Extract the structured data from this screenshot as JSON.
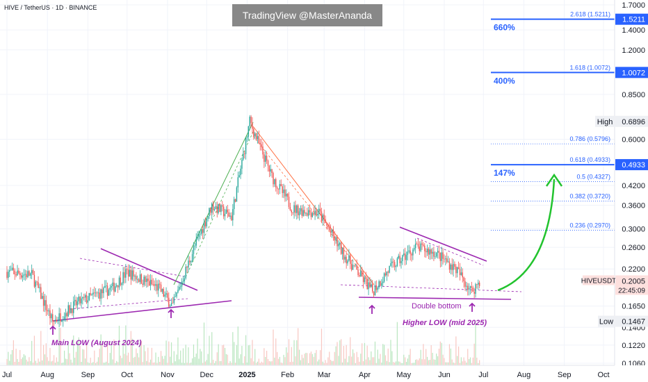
{
  "header": {
    "symbol": "HIVE / TetherUS · 1D · BINANCE",
    "watermark": "TradingView @MasterAnanda"
  },
  "price_axis": {
    "ticks": [
      "1.7000",
      "1.4000",
      "1.2000",
      "0.8500",
      "0.6000",
      "0.4200",
      "0.3600",
      "0.3000",
      "0.2600",
      "0.2200",
      "0.1650",
      "0.1400",
      "0.1220",
      "0.1060"
    ],
    "tick_values": [
      1.7,
      1.4,
      1.2,
      0.85,
      0.6,
      0.42,
      0.36,
      0.3,
      0.26,
      0.22,
      0.165,
      0.14,
      0.122,
      0.106
    ],
    "current": {
      "label": "HIVEUSDT",
      "price": "0.2005",
      "countdown": "22:45:09"
    },
    "high": {
      "label": "High",
      "price": "0.6896"
    },
    "low": {
      "label": "Low",
      "price": "0.1467"
    },
    "tags": [
      {
        "price": "1.5211",
        "value": 1.5211
      },
      {
        "price": "1.0072",
        "value": 1.0072
      },
      {
        "price": "0.4933",
        "value": 0.4933
      }
    ]
  },
  "time_axis": {
    "labels": [
      "Jul",
      "Aug",
      "Sep",
      "Oct",
      "Nov",
      "Dec",
      "2025",
      "Feb",
      "Mar",
      "Apr",
      "May",
      "Jun",
      "Jul",
      "Aug",
      "Sep",
      "Oct"
    ]
  },
  "fib_levels": [
    {
      "label": "2.618 (1.5211)",
      "value": 1.5211,
      "bold": true
    },
    {
      "label": "1.618 (1.0072)",
      "value": 1.0072,
      "bold": true
    },
    {
      "label": "0.786 (0.5796)",
      "value": 0.5796,
      "bold": false
    },
    {
      "label": "0.618 (0.4933)",
      "value": 0.4933,
      "bold": true
    },
    {
      "label": "0.5 (0.4327)",
      "value": 0.4327,
      "bold": false
    },
    {
      "label": "0.382 (0.3720)",
      "value": 0.372,
      "bold": false
    },
    {
      "label": "0.236 (0.2970)",
      "value": 0.297,
      "bold": false
    }
  ],
  "targets": [
    {
      "label": "660%",
      "value": 1.5211
    },
    {
      "label": "400%",
      "value": 1.0072
    },
    {
      "label": "147%",
      "value": 0.4933
    }
  ],
  "annotations": {
    "main_low": "Main LOW (August 2024)",
    "higher_low": "Higher LOW (mid 2025)",
    "double_bottom": "Double bottom"
  },
  "colors": {
    "up": "#26a69a",
    "down": "#ef5350",
    "fib": "#2962ff",
    "purple": "#9c27b0",
    "green_arrow": "#22c32e",
    "trend_up": "#4caf50",
    "trend_down": "#ff7043"
  },
  "chart_data": {
    "type": "candlestick",
    "scale": "log",
    "ylim": [
      0.1,
      1.78
    ],
    "key_points": [
      {
        "date": "2024-07-01",
        "price": 0.215
      },
      {
        "date": "2024-07-20",
        "price": 0.21
      },
      {
        "date": "2024-08-05",
        "price": 0.146
      },
      {
        "date": "2024-08-25",
        "price": 0.17
      },
      {
        "date": "2024-09-20",
        "price": 0.19
      },
      {
        "date": "2024-10-01",
        "price": 0.215
      },
      {
        "date": "2024-10-25",
        "price": 0.19
      },
      {
        "date": "2024-11-05",
        "price": 0.165
      },
      {
        "date": "2024-11-20",
        "price": 0.25
      },
      {
        "date": "2024-12-05",
        "price": 0.36
      },
      {
        "date": "2024-12-20",
        "price": 0.33
      },
      {
        "date": "2025-01-03",
        "price": 0.6896
      },
      {
        "date": "2025-01-20",
        "price": 0.45
      },
      {
        "date": "2025-02-05",
        "price": 0.35
      },
      {
        "date": "2025-02-25",
        "price": 0.34
      },
      {
        "date": "2025-03-15",
        "price": 0.25
      },
      {
        "date": "2025-04-07",
        "price": 0.185
      },
      {
        "date": "2025-04-20",
        "price": 0.22
      },
      {
        "date": "2025-05-10",
        "price": 0.26
      },
      {
        "date": "2025-05-25",
        "price": 0.25
      },
      {
        "date": "2025-06-10",
        "price": 0.22
      },
      {
        "date": "2025-06-22",
        "price": 0.185
      },
      {
        "date": "2025-06-28",
        "price": 0.2005
      }
    ]
  }
}
